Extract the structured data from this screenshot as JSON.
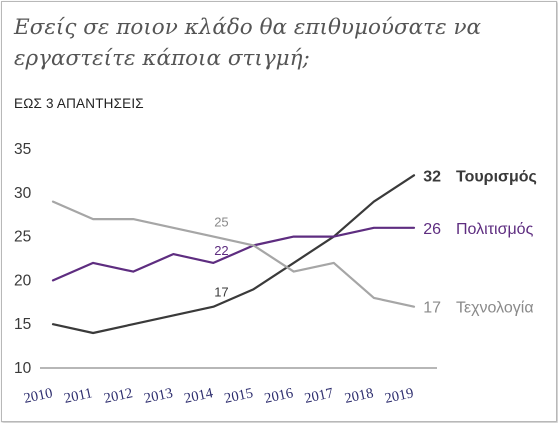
{
  "chart_data": {
    "type": "line",
    "title": "Εσείς σε ποιον κλάδο θα επιθυμούσατε να εργαστείτε κάποια στιγμή;",
    "subtitle": "ΕΩΣ 3 ΑΠΑΝΤΗΣΕΙΣ",
    "x": [
      "2010",
      "2011",
      "2012",
      "2013",
      "2014",
      "2015",
      "2016",
      "2017",
      "2018",
      "2019"
    ],
    "yticks": [
      "10",
      "15",
      "20",
      "25",
      "30",
      "35"
    ],
    "ylim": [
      10,
      35
    ],
    "grid": false,
    "series": [
      {
        "name": "Τουρισμός",
        "color": "#3a3a3a",
        "bold": true,
        "values": [
          15,
          14,
          15,
          16,
          17,
          19,
          22,
          25,
          29,
          32
        ],
        "end_label": "32",
        "point_labels": [
          {
            "index": 4,
            "text": "17"
          }
        ]
      },
      {
        "name": "Πολιτισμός",
        "color": "#5e2d80",
        "bold": false,
        "values": [
          20,
          22,
          21,
          23,
          22,
          24,
          25,
          25,
          26,
          26
        ],
        "end_label": "26",
        "point_labels": [
          {
            "index": 4,
            "text": "22"
          }
        ]
      },
      {
        "name": "Τεχνολογία",
        "color": "#a6a6a6",
        "bold": false,
        "values": [
          29,
          27,
          27,
          26,
          25,
          24,
          21,
          22,
          18,
          17
        ],
        "end_label": "17",
        "point_labels": [
          {
            "index": 4,
            "text": "25"
          }
        ]
      }
    ]
  }
}
